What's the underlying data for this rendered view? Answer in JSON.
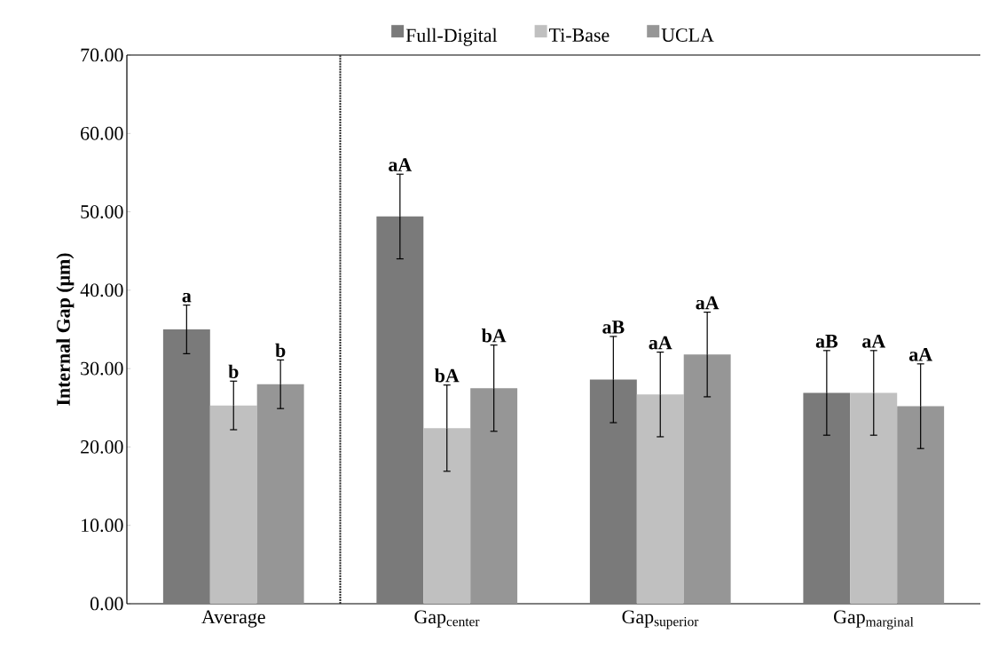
{
  "chart_data": {
    "type": "bar",
    "ylabel": "**Internal Gap (μm)**",
    "categories": [
      "Average",
      "Gap$_{center}$",
      "Gap$_{superior}$",
      "Gap$_{marginal}$"
    ],
    "series": [
      {
        "name": "Full-Digital",
        "color": "#7a7a7a",
        "values": [
          35.0,
          49.4,
          28.6,
          26.9
        ],
        "errors": [
          3.1,
          5.4,
          5.5,
          5.4
        ]
      },
      {
        "name": "Ti-Base",
        "color": "#c0c0c0",
        "values": [
          25.3,
          22.4,
          26.7,
          26.9
        ],
        "errors": [
          3.1,
          5.5,
          5.4,
          5.4
        ]
      },
      {
        "name": "UCLA",
        "color": "#969696",
        "values": [
          28.0,
          27.5,
          31.8,
          25.2
        ],
        "errors": [
          3.1,
          5.5,
          5.4,
          5.4
        ]
      }
    ],
    "ylim": [
      0,
      70
    ],
    "yticks": [
      {
        "value": 0,
        "label": "0.00"
      },
      {
        "value": 10,
        "label": "10.00"
      },
      {
        "value": 20,
        "label": "20.00"
      },
      {
        "value": 30,
        "label": "30.00"
      },
      {
        "value": 40,
        "label": "40.00"
      },
      {
        "value": 50,
        "label": "50.00"
      },
      {
        "value": 60,
        "label": "60.00"
      },
      {
        "value": 70,
        "label": "70.00"
      }
    ],
    "legend": "top",
    "grid": false,
    "annotations": [
      "**a**",
      "**b**",
      "**b**",
      "**aA**",
      "**bA**",
      "**bA**",
      "**aB**",
      "**aA**",
      "**aA**",
      "**aB**",
      "**aA**",
      "**aA**"
    ]
  }
}
